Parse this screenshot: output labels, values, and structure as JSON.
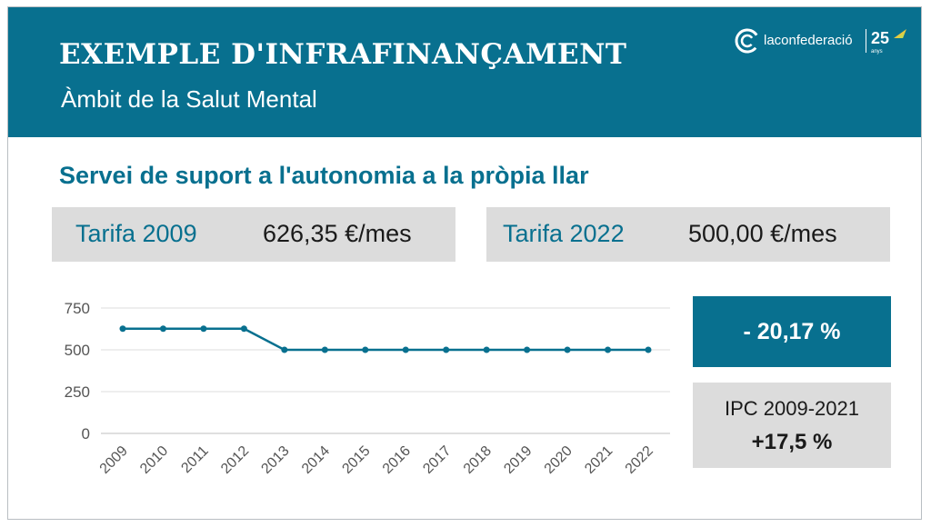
{
  "header": {
    "title": "EXEMPLE D'INFRAFINANÇAMENT",
    "subtitle": "Àmbit de la Salut Mental",
    "logo": {
      "name": "laconfederació",
      "years": "25",
      "years_caption": "anys"
    }
  },
  "section_title": "Servei de suport a l'autonomia a la pròpia llar",
  "tariffs": [
    {
      "label": "Tarifa 2009",
      "value": "626,35 €/mes"
    },
    {
      "label": "Tarifa 2022",
      "value": "500,00 €/mes"
    }
  ],
  "change": "- 20,17 %",
  "ipc": {
    "label": "IPC 2009-2021",
    "value": "+17,5 %"
  },
  "colors": {
    "brand": "#08708f",
    "panel_gray": "#dcdcdc",
    "line": "#08708f"
  },
  "chart_data": {
    "type": "line",
    "title": "",
    "xlabel": "",
    "ylabel": "",
    "categories": [
      "2009",
      "2010",
      "2011",
      "2012",
      "2013",
      "2014",
      "2015",
      "2016",
      "2017",
      "2018",
      "2019",
      "2020",
      "2021",
      "2022"
    ],
    "series": [
      {
        "values": [
          626.35,
          626.35,
          626.35,
          626.35,
          500,
          500,
          500,
          500,
          500,
          500,
          500,
          500,
          500,
          500
        ]
      }
    ],
    "yticks": [
      0,
      250,
      500,
      750
    ],
    "ytick_labels": [
      "0",
      "250",
      "500",
      "750"
    ],
    "ylim": [
      0,
      750
    ],
    "grid": true,
    "legend": "none"
  }
}
